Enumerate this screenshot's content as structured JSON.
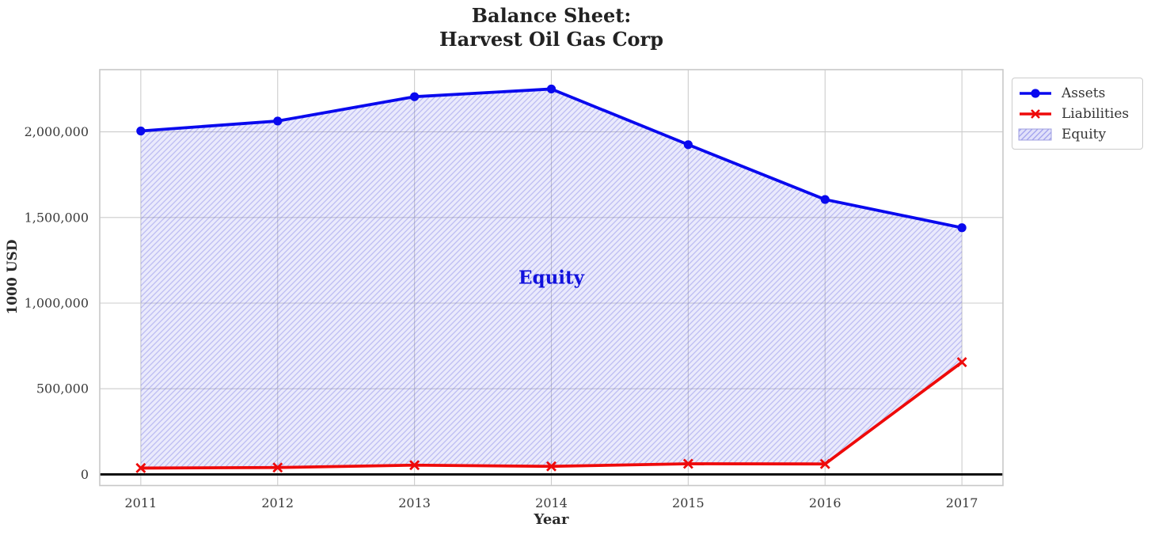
{
  "chart_data": {
    "type": "line",
    "title": "Balance Sheet:\nHarvest Oil Gas Corp",
    "xlabel": "Year",
    "ylabel": "1000 USD",
    "x": [
      2011,
      2012,
      2013,
      2014,
      2015,
      2016,
      2017
    ],
    "series": [
      {
        "name": "Assets",
        "color": "#0909ee",
        "marker": "circle",
        "values": [
          2005000,
          2063000,
          2205000,
          2250000,
          1925000,
          1605000,
          1440000
        ]
      },
      {
        "name": "Liabilities",
        "color": "#ee0a0a",
        "marker": "x",
        "values": [
          37000,
          40000,
          54000,
          47000,
          62000,
          61000,
          655000
        ]
      }
    ],
    "fill": {
      "name": "Equity",
      "between": [
        "Assets",
        "Liabilities"
      ],
      "face_color": "rgba(90,90,230,0.13)",
      "hatch": "//",
      "hatch_color": "rgba(80,80,220,0.30)"
    },
    "annotation": {
      "text": "Equity",
      "x": 2014,
      "y": 1150000,
      "color": "#1111dd"
    },
    "xlim": [
      2010.7,
      2017.3
    ],
    "ylim": [
      -65000,
      2363000
    ],
    "xticks": [
      2011,
      2012,
      2013,
      2014,
      2015,
      2016,
      2017
    ],
    "xtick_labels": [
      "2011",
      "2012",
      "2013",
      "2014",
      "2015",
      "2016",
      "2017"
    ],
    "yticks": [
      0,
      500000,
      1000000,
      1500000,
      2000000
    ],
    "ytick_labels": [
      "0",
      "500,000",
      "1,000,000",
      "1,500,000",
      "2,000,000"
    ],
    "grid": true,
    "grid_color": "#cccccc",
    "zero_line": true,
    "zero_line_color": "#000000",
    "frame_color": "#c8c8c8",
    "legend_position": "outside upper right"
  }
}
